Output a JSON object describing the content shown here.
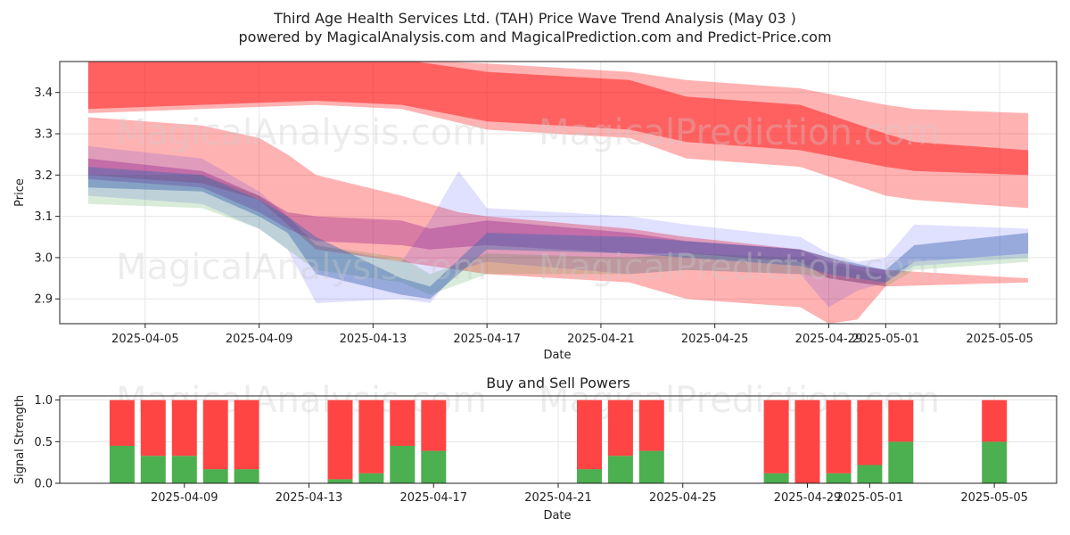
{
  "header": {
    "title": "Third Age Health Services Ltd. (TAH) Price Wave Trend Analysis (May 03 )",
    "subtitle": "powered by MagicalAnalysis.com and MagicalPrediction.com and Predict-Price.com"
  },
  "watermarks": [
    "MagicalAnalysis.com",
    "MagicalPrediction.com"
  ],
  "colors": {
    "red_band": "#ff0000",
    "blue_band": "#0000ff",
    "green_band": "#008000",
    "purple_band": "#800080",
    "steelblue_band": "#4169b0",
    "buy": "#4caf50",
    "sell": "#ff4444"
  },
  "chart_data": [
    {
      "type": "area",
      "title": "",
      "xlabel": "Date",
      "ylabel": "Price",
      "x_start": "2025-04-02",
      "x_end": "2025-05-07",
      "xlim": [
        "2025-04-02",
        "2025-05-07"
      ],
      "ylim": [
        2.84,
        3.475
      ],
      "yticks": [
        2.9,
        3.0,
        3.1,
        3.2,
        3.3,
        3.4
      ],
      "ytick_labels": [
        "2.9",
        "3.0",
        "3.1",
        "3.2",
        "3.3",
        "3.4"
      ],
      "xticks": [
        "2025-04-05",
        "2025-04-09",
        "2025-04-13",
        "2025-04-17",
        "2025-04-21",
        "2025-04-25",
        "2025-04-29",
        "2025-05-01",
        "2025-05-05"
      ],
      "grid": true,
      "series": [
        {
          "color": "#ff0000",
          "opacity": 0.45,
          "x": [
            "2025-04-03",
            "2025-04-07",
            "2025-04-11",
            "2025-04-14",
            "2025-04-17",
            "2025-04-22",
            "2025-04-24",
            "2025-04-28",
            "2025-05-01",
            "2025-05-02",
            "2025-05-06"
          ],
          "upper": [
            3.48,
            3.48,
            3.48,
            3.48,
            3.45,
            3.43,
            3.39,
            3.37,
            3.3,
            3.28,
            3.26
          ],
          "lower": [
            3.36,
            3.37,
            3.38,
            3.37,
            3.33,
            3.31,
            3.28,
            3.26,
            3.22,
            3.21,
            3.2
          ]
        },
        {
          "color": "#ff0000",
          "opacity": 0.3,
          "x": [
            "2025-04-03",
            "2025-04-07",
            "2025-04-11",
            "2025-04-14",
            "2025-04-17",
            "2025-04-22",
            "2025-04-24",
            "2025-04-28",
            "2025-05-01",
            "2025-05-02",
            "2025-05-06"
          ],
          "upper": [
            3.48,
            3.48,
            3.48,
            3.48,
            3.47,
            3.45,
            3.43,
            3.41,
            3.37,
            3.36,
            3.35
          ],
          "lower": [
            3.35,
            3.36,
            3.37,
            3.36,
            3.31,
            3.29,
            3.24,
            3.22,
            3.15,
            3.14,
            3.12
          ]
        },
        {
          "color": "#ff0000",
          "opacity": 0.3,
          "x": [
            "2025-04-03",
            "2025-04-07",
            "2025-04-09",
            "2025-04-10",
            "2025-04-11",
            "2025-04-14",
            "2025-04-16",
            "2025-04-17",
            "2025-04-22",
            "2025-04-24",
            "2025-04-28",
            "2025-04-29",
            "2025-04-30",
            "2025-05-01",
            "2025-05-06"
          ],
          "upper": [
            3.34,
            3.32,
            3.29,
            3.25,
            3.2,
            3.15,
            3.11,
            3.1,
            3.07,
            3.05,
            3.02,
            3.0,
            2.98,
            2.97,
            2.95
          ],
          "lower": [
            3.2,
            3.18,
            3.14,
            3.08,
            3.02,
            2.99,
            2.97,
            2.96,
            2.94,
            2.9,
            2.88,
            2.84,
            2.85,
            2.93,
            2.94
          ]
        },
        {
          "color": "#0000ff",
          "opacity": 0.12,
          "x": [
            "2025-04-03",
            "2025-04-07",
            "2025-04-09",
            "2025-04-10",
            "2025-04-11",
            "2025-04-14",
            "2025-04-15",
            "2025-04-16",
            "2025-04-17",
            "2025-04-22",
            "2025-04-24",
            "2025-04-28",
            "2025-04-29",
            "2025-04-30",
            "2025-05-01",
            "2025-05-02",
            "2025-05-06"
          ],
          "upper": [
            3.27,
            3.24,
            3.16,
            3.1,
            3.03,
            2.99,
            3.09,
            3.21,
            3.12,
            3.1,
            3.08,
            3.05,
            3.01,
            2.99,
            3.0,
            3.08,
            3.07
          ],
          "lower": [
            3.15,
            3.13,
            3.07,
            3.02,
            2.89,
            2.9,
            2.89,
            2.97,
            2.99,
            2.96,
            2.97,
            2.96,
            2.88,
            2.92,
            2.94,
            2.98,
            3.0
          ]
        },
        {
          "color": "#008000",
          "opacity": 0.15,
          "x": [
            "2025-04-03",
            "2025-04-07",
            "2025-04-09",
            "2025-04-10",
            "2025-04-11",
            "2025-04-14",
            "2025-04-15",
            "2025-04-17",
            "2025-04-22",
            "2025-04-24",
            "2025-04-28",
            "2025-04-30",
            "2025-05-01",
            "2025-05-02",
            "2025-05-06"
          ],
          "upper": [
            3.2,
            3.2,
            3.15,
            3.1,
            3.03,
            3.0,
            2.96,
            3.01,
            3.0,
            3.01,
            3.0,
            2.97,
            2.96,
            2.99,
            3.01
          ],
          "lower": [
            3.13,
            3.12,
            3.07,
            3.02,
            2.97,
            2.94,
            2.91,
            2.96,
            2.96,
            2.97,
            2.96,
            2.94,
            2.93,
            2.97,
            2.99
          ]
        },
        {
          "color": "#800080",
          "opacity": 0.3,
          "x": [
            "2025-04-03",
            "2025-04-07",
            "2025-04-09",
            "2025-04-10",
            "2025-04-11",
            "2025-04-14",
            "2025-04-15",
            "2025-04-17",
            "2025-04-22",
            "2025-04-24",
            "2025-04-28",
            "2025-04-29",
            "2025-05-01"
          ],
          "upper": [
            3.24,
            3.21,
            3.15,
            3.11,
            3.1,
            3.09,
            3.07,
            3.09,
            3.06,
            3.04,
            3.02,
            2.99,
            2.97
          ],
          "lower": [
            3.19,
            3.17,
            3.11,
            3.07,
            3.04,
            3.03,
            3.02,
            3.03,
            3.01,
            3.01,
            2.99,
            2.95,
            2.93
          ]
        },
        {
          "color": "#4169b0",
          "opacity": 0.45,
          "x": [
            "2025-04-03",
            "2025-04-07",
            "2025-04-09",
            "2025-04-10",
            "2025-04-11",
            "2025-04-14",
            "2025-04-15",
            "2025-04-17",
            "2025-04-22",
            "2025-04-24",
            "2025-04-28",
            "2025-04-29",
            "2025-05-01",
            "2025-05-02",
            "2025-05-06"
          ],
          "upper": [
            3.22,
            3.2,
            3.14,
            3.1,
            3.05,
            2.95,
            2.93,
            3.06,
            3.05,
            3.04,
            3.02,
            3.0,
            2.97,
            3.03,
            3.06
          ],
          "lower": [
            3.17,
            3.16,
            3.1,
            3.06,
            2.96,
            2.91,
            2.9,
            3.02,
            3.01,
            3.0,
            2.98,
            2.96,
            2.94,
            2.99,
            3.01
          ]
        }
      ]
    },
    {
      "type": "bar",
      "title": "Buy and Sell Powers",
      "xlabel": "Date",
      "ylabel": "Signal Strength",
      "xlim": [
        "2025-04-05",
        "2025-05-07"
      ],
      "ylim": [
        0,
        1.05
      ],
      "yticks": [
        0.0,
        0.5,
        1.0
      ],
      "ytick_labels": [
        "0.0",
        "0.5",
        "1.0"
      ],
      "xticks": [
        "2025-04-09",
        "2025-04-13",
        "2025-04-17",
        "2025-04-21",
        "2025-04-25",
        "2025-04-29",
        "2025-05-01",
        "2025-05-05"
      ],
      "grid": true,
      "categories": [
        "2025-04-07",
        "2025-04-08",
        "2025-04-09",
        "2025-04-10",
        "2025-04-11",
        "2025-04-14",
        "2025-04-15",
        "2025-04-16",
        "2025-04-17",
        "2025-04-22",
        "2025-04-23",
        "2025-04-24",
        "2025-04-28",
        "2025-04-29",
        "2025-04-30",
        "2025-05-01",
        "2025-05-02",
        "2025-05-05"
      ],
      "series": [
        {
          "name": "Buy",
          "values": [
            0.45,
            0.33,
            0.33,
            0.17,
            0.17,
            0.05,
            0.12,
            0.45,
            0.39,
            0.17,
            0.33,
            0.39,
            0.12,
            0.0,
            0.12,
            0.22,
            0.5,
            0.5
          ]
        },
        {
          "name": "Sell",
          "values": [
            0.55,
            0.67,
            0.67,
            0.83,
            0.83,
            0.95,
            0.88,
            0.55,
            0.61,
            0.83,
            0.67,
            0.61,
            0.88,
            1.0,
            0.88,
            0.78,
            0.5,
            0.5
          ]
        }
      ]
    }
  ]
}
